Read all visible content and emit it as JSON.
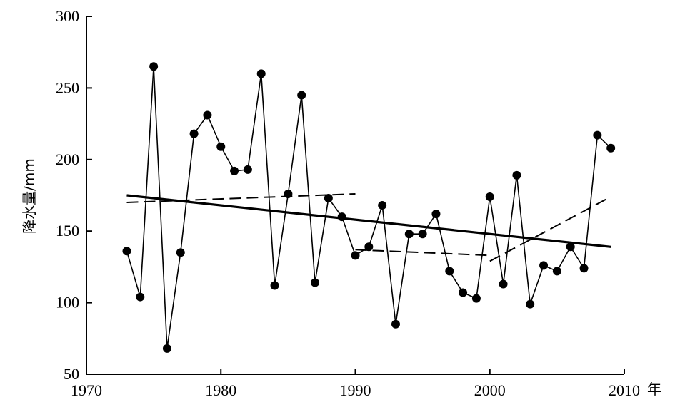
{
  "chart_data": {
    "type": "line",
    "title": "",
    "xlabel": "年",
    "ylabel": "降水量/mm",
    "xlim": [
      1970,
      2010
    ],
    "ylim": [
      50,
      300
    ],
    "x_ticks": [
      1970,
      1980,
      1990,
      2000,
      2010
    ],
    "y_ticks": [
      50,
      100,
      150,
      200,
      250,
      300
    ],
    "grid": false,
    "legend": "none",
    "series": [
      {
        "style": "solid-markers",
        "color": "#000000",
        "x": [
          1973,
          1974,
          1975,
          1976,
          1977,
          1978,
          1979,
          1980,
          1981,
          1982,
          1983,
          1984,
          1985,
          1986,
          1987,
          1988,
          1989,
          1990,
          1991,
          1992,
          1993,
          1994,
          1995,
          1996,
          1997,
          1998,
          1999,
          2000,
          2001,
          2002,
          2003,
          2004,
          2005,
          2006,
          2007,
          2008,
          2009
        ],
        "values": [
          136,
          104,
          265,
          68,
          135,
          218,
          231,
          209,
          192,
          193,
          260,
          112,
          176,
          245,
          114,
          173,
          160,
          133,
          139,
          168,
          85,
          148,
          148,
          162,
          122,
          107,
          103,
          174,
          113,
          189,
          99,
          126,
          122,
          139,
          124,
          217,
          208
        ]
      },
      {
        "style": "solid-thick",
        "color": "#000000",
        "x": [
          1973,
          2009
        ],
        "values": [
          175,
          139
        ]
      },
      {
        "style": "dashed",
        "color": "#000000",
        "x": [
          1973,
          1990
        ],
        "values": [
          170,
          176
        ]
      },
      {
        "style": "dashed",
        "color": "#000000",
        "x": [
          1990,
          2000
        ],
        "values": [
          137,
          133
        ]
      },
      {
        "style": "dashed",
        "color": "#000000",
        "x": [
          2000,
          2009
        ],
        "values": [
          129,
          174
        ]
      }
    ]
  }
}
